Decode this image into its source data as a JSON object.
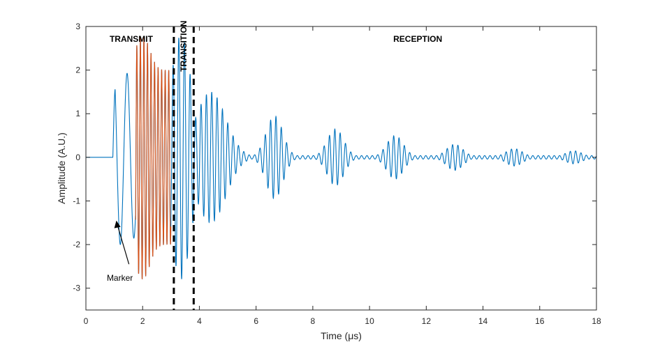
{
  "chart_data": {
    "type": "line",
    "title": "",
    "xlabel": "Time (μs)",
    "ylabel": "Amplitude (A.U.)",
    "xlim": [
      0,
      18
    ],
    "ylim": [
      -3.5,
      3
    ],
    "x_ticks": [
      0,
      2,
      4,
      6,
      8,
      10,
      12,
      14,
      16,
      18
    ],
    "y_ticks": [
      3,
      2,
      1,
      0,
      -1,
      -2,
      -3
    ],
    "grid": false,
    "colors": {
      "received": "#0072BD",
      "transmit": "#D95319",
      "boundary": "#000000",
      "axis": "#262626"
    },
    "series": [
      {
        "name": "received signal",
        "color": "#0072BD",
        "x_range": [
          0,
          18
        ]
      },
      {
        "name": "transmit pulse",
        "color": "#D95319",
        "x_range": [
          1.75,
          3.0
        ]
      }
    ],
    "boundaries": [
      3.1,
      3.8
    ],
    "regions": [
      {
        "label": "TRANSMIT",
        "x": 1.6
      },
      {
        "label": "TRANSITION",
        "x": 3.45
      },
      {
        "label": "RECEPTION",
        "x": 11.7
      }
    ],
    "annotation": {
      "text": "Marker",
      "arrow_tip": [
        1.0,
        -1.45
      ],
      "text_at": [
        1.0,
        -2.8
      ]
    },
    "envelope_peaks": [
      {
        "t": 1.05,
        "a": 2.05
      },
      {
        "t": 2.1,
        "a": 2.9
      },
      {
        "t": 3.4,
        "a": 2.5
      },
      {
        "t": 4.4,
        "a": 1.5
      },
      {
        "t": 6.65,
        "a": 0.95
      },
      {
        "t": 8.8,
        "a": 0.65
      },
      {
        "t": 10.9,
        "a": 0.5
      },
      {
        "t": 13.0,
        "a": 0.3
      },
      {
        "t": 15.1,
        "a": 0.2
      },
      {
        "t": 17.2,
        "a": 0.15
      }
    ]
  }
}
